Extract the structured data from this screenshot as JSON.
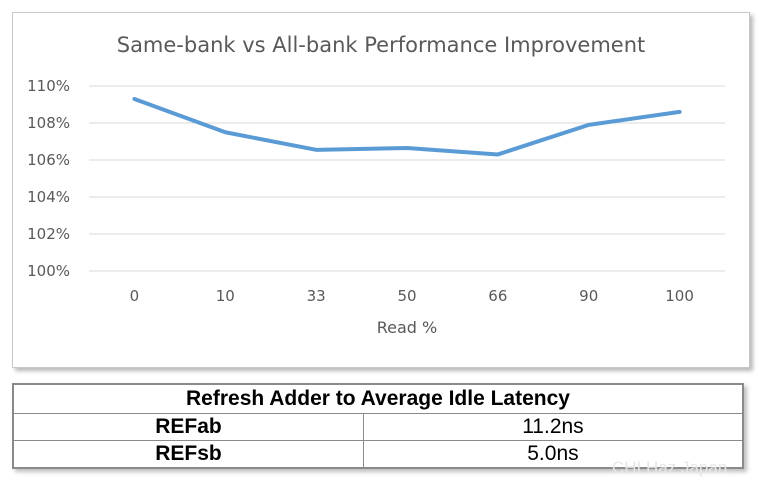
{
  "chart_data": {
    "type": "line",
    "title": "Same-bank vs All-bank Performance Improvement",
    "xlabel": "Read %",
    "ylabel": "",
    "categories": [
      "0",
      "10",
      "33",
      "50",
      "66",
      "90",
      "100"
    ],
    "series": [
      {
        "values": [
          109.3,
          107.5,
          106.55,
          106.65,
          106.3,
          107.9,
          108.6
        ]
      }
    ],
    "ylim": [
      100,
      110
    ],
    "yticks": [
      {
        "value": 100,
        "label": "100%"
      },
      {
        "value": 102,
        "label": "102%"
      },
      {
        "value": 104,
        "label": "104%"
      },
      {
        "value": 106,
        "label": "106%"
      },
      {
        "value": 108,
        "label": "108%"
      },
      {
        "value": 110,
        "label": "110%"
      }
    ],
    "grid": true,
    "legend": "none",
    "line_color": "#5b9bd5"
  },
  "table": {
    "title": "Refresh Adder to Average Idle Latency",
    "rows": [
      {
        "label": "REFab",
        "value": "11.2ns"
      },
      {
        "label": "REFsb",
        "value": "5.0ns"
      }
    ]
  },
  "watermark": "CHI Haz Japan"
}
